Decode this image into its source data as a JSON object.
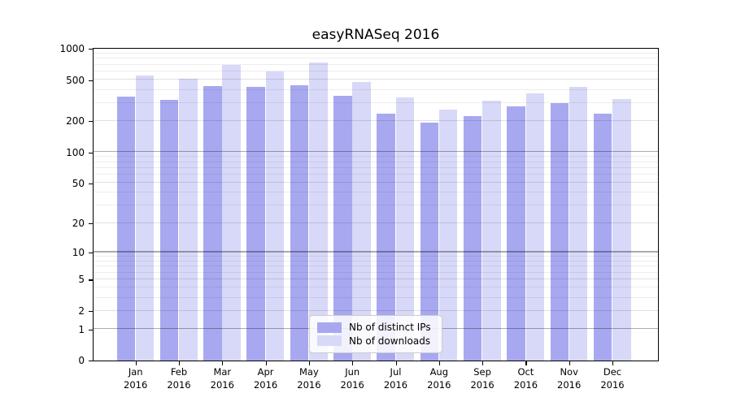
{
  "chart_data": {
    "type": "bar",
    "title": "easyRNASeq 2016",
    "x": [
      "Jan",
      "Feb",
      "Mar",
      "Apr",
      "May",
      "Jun",
      "Jul",
      "Aug",
      "Sep",
      "Oct",
      "Nov",
      "Dec"
    ],
    "x_year": "2016",
    "series": [
      {
        "name": "Nb of distinct IPs",
        "color": "#a8a8f0",
        "values": [
          345,
          320,
          435,
          428,
          442,
          350,
          237,
          193,
          224,
          276,
          296,
          234
        ]
      },
      {
        "name": "Nb of downloads",
        "color": "#d8d8f8",
        "values": [
          550,
          508,
          695,
          600,
          730,
          478,
          336,
          260,
          316,
          372,
          427,
          324
        ]
      }
    ],
    "y_scale": "log1p",
    "ylim": [
      0,
      1000
    ],
    "y_ticks": [
      0,
      1,
      2,
      5,
      10,
      20,
      50,
      100,
      200,
      500,
      1000
    ],
    "grid": {
      "major": [
        1,
        10,
        100
      ],
      "mid": [
        2,
        5,
        20,
        50,
        200,
        500
      ],
      "minor": [
        3,
        4,
        6,
        7,
        8,
        9,
        30,
        40,
        60,
        70,
        80,
        90,
        300,
        400,
        600,
        700,
        800,
        900
      ]
    },
    "legend_position": "lower center",
    "background": "#ffffff"
  }
}
